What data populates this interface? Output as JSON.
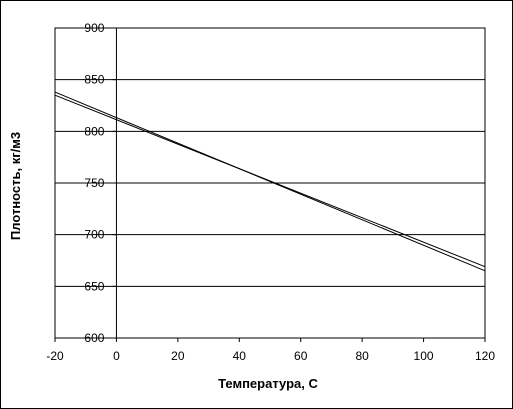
{
  "chart_data": {
    "type": "line",
    "title": "",
    "xlabel": "Температура, С",
    "ylabel": "Плотность, кг/м3",
    "xlim": [
      -20,
      120
    ],
    "ylim": [
      600,
      900
    ],
    "xticks": [
      -20,
      0,
      20,
      40,
      60,
      80,
      100,
      120
    ],
    "yticks": [
      600,
      650,
      700,
      750,
      800,
      850,
      900
    ],
    "grid": "horizontal major gridlines",
    "legend": "none",
    "line_color": "#000000",
    "series": [
      {
        "x": [
          -20,
          120
        ],
        "y": [
          838,
          665
        ]
      },
      {
        "x": [
          -20,
          120
        ],
        "y": [
          835,
          669
        ]
      }
    ]
  }
}
